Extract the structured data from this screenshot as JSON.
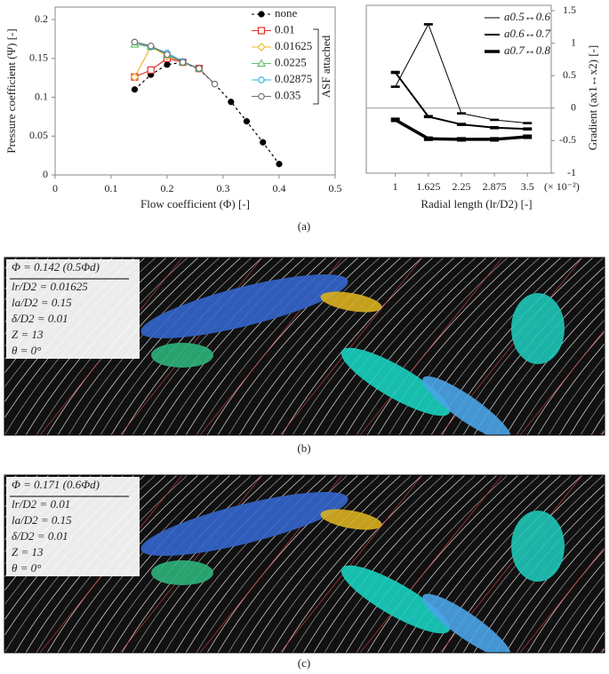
{
  "chart_data": [
    {
      "type": "line",
      "x_label": "Flow coefficient (Φ) [-]",
      "y_label": "Pressure coefficient (Ψ) [-]",
      "xlim": [
        0,
        0.5
      ],
      "xticks": [
        0,
        0.1,
        0.2,
        0.3,
        0.4,
        0.5
      ],
      "ylim": [
        0,
        0.216
      ],
      "yticks": [
        0,
        0.05,
        0.1,
        0.15,
        0.2
      ],
      "legend_note": "ASF attached",
      "series": [
        {
          "name": "none",
          "color": "#000000",
          "marker": "dot",
          "dashed": true,
          "x": [
            0.142,
            0.171,
            0.2,
            0.228,
            0.257,
            0.285,
            0.314,
            0.342,
            0.371,
            0.4
          ],
          "values": [
            0.11,
            0.129,
            0.142,
            0.145,
            0.136,
            0.117,
            0.094,
            0.069,
            0.042,
            0.014
          ]
        },
        {
          "name": "0.01",
          "color": "#e03030",
          "marker": "square",
          "x": [
            0.142,
            0.171,
            0.2,
            0.228,
            0.257
          ],
          "values": [
            0.126,
            0.135,
            0.15,
            0.145,
            0.137
          ]
        },
        {
          "name": "0.01625",
          "color": "#f2b830",
          "marker": "diamond",
          "x": [
            0.142,
            0.171,
            0.2,
            0.228,
            0.257
          ],
          "values": [
            0.126,
            0.165,
            0.153,
            0.145,
            0.137
          ]
        },
        {
          "name": "0.0225",
          "color": "#6cc070",
          "marker": "triangle",
          "x": [
            0.142,
            0.171,
            0.2,
            0.228,
            0.257
          ],
          "values": [
            0.168,
            0.165,
            0.155,
            0.145,
            0.137
          ]
        },
        {
          "name": "0.02875",
          "color": "#30b0e0",
          "marker": "circle",
          "x": [
            0.142,
            0.171,
            0.2,
            0.228,
            0.257
          ],
          "values": [
            0.171,
            0.165,
            0.157,
            0.146,
            0.137
          ]
        },
        {
          "name": "0.035",
          "color": "#707070",
          "marker": "circle",
          "x": [
            0.142,
            0.171,
            0.2,
            0.228,
            0.257,
            0.285
          ],
          "values": [
            0.171,
            0.166,
            0.155,
            0.145,
            0.137,
            0.117
          ]
        }
      ]
    },
    {
      "type": "line",
      "x_label": "Radial length (lr/D2) [-]",
      "x_tick_note": "(× 10⁻²)",
      "y2_label": "Gradient (ax1↔x2) [-]",
      "xlim": [
        0.45,
        3.95
      ],
      "xticks": [
        1,
        1.625,
        2.25,
        2.875,
        3.5
      ],
      "y2lim": [
        -1,
        1.5
      ],
      "y2ticks": [
        -1,
        -0.5,
        0,
        0.5,
        1,
        1.5
      ],
      "series": [
        {
          "name": "a0.5↔0.6",
          "color": "#000000",
          "width": 1,
          "axis": "y2",
          "x": [
            1,
            1.625,
            2.25,
            2.875,
            3.5
          ],
          "values": [
            0.33,
            1.29,
            -0.08,
            -0.18,
            -0.23
          ]
        },
        {
          "name": "a0.6↔0.7",
          "color": "#000000",
          "width": 2,
          "axis": "y2",
          "x": [
            1,
            1.625,
            2.25,
            2.875,
            3.5
          ],
          "values": [
            0.55,
            -0.13,
            -0.25,
            -0.3,
            -0.32
          ]
        },
        {
          "name": "a0.7↔0.8",
          "color": "#000000",
          "width": 3.5,
          "axis": "y2",
          "x": [
            1,
            1.625,
            2.25,
            2.875,
            3.5
          ],
          "values": [
            -0.18,
            -0.47,
            -0.48,
            -0.48,
            -0.44
          ]
        }
      ]
    }
  ],
  "captions": [
    "(a)",
    "(b)",
    "(c)"
  ],
  "panels": [
    {
      "lines": [
        "Φ = 0.142 (0.5Φd)",
        "lr/D2 = 0.01625",
        "la/D2 = 0.15",
        "δ/D2 = 0.01",
        "Z = 13",
        "θ = 0°"
      ]
    },
    {
      "lines": [
        "Φ = 0.171 (0.6Φd)",
        "lr/D2 = 0.01",
        "la/D2 = 0.15",
        "δ/D2 = 0.01",
        "Z = 13",
        "θ = 0°"
      ]
    }
  ]
}
